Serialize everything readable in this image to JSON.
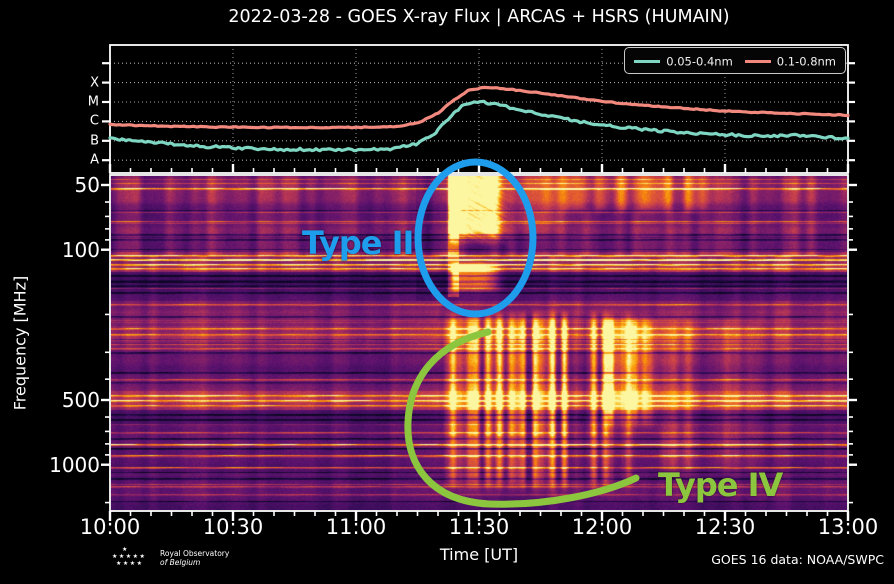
{
  "title": "2022-03-28 - GOES X-ray Flux | ARCAS + HSRS (HUMAIN)",
  "footer": {
    "org_line1": "Royal Observatory",
    "org_line2": "of Belgium",
    "credit": "GOES 16 data: NOAA/SWPC"
  },
  "annotations": {
    "type2_label": "Type II",
    "type2_color": "#1f9ded",
    "type4_label": "Type IV",
    "type4_color": "#8cc63e"
  },
  "chart_data": [
    {
      "type": "line",
      "name": "goes-xray-flux",
      "x_hours_range": [
        10,
        13
      ],
      "y_scale": "log",
      "y_flux_range_wm2": [
        1e-09,
        0.01
      ],
      "grid_flux_levels": [
        0.001,
        0.0001,
        1e-05,
        1e-06,
        1e-07,
        1e-08
      ],
      "class_labels": [
        {
          "label": "X",
          "flux": 0.0001
        },
        {
          "label": "M",
          "flux": 1e-05
        },
        {
          "label": "C",
          "flux": 1e-06
        },
        {
          "label": "B",
          "flux": 1e-07
        },
        {
          "label": "A",
          "flux": 1e-08
        }
      ],
      "legend": [
        {
          "label": "0.05-0.4nm",
          "color": "#7fd6c2"
        },
        {
          "label": "0.1-0.8nm",
          "color": "#f2897f"
        }
      ],
      "series": [
        {
          "name": "0.05-0.4nm",
          "color": "#7fd6c2",
          "points": [
            [
              10.0,
              1.25e-07
            ],
            [
              10.1,
              1e-07
            ],
            [
              10.25,
              7e-08
            ],
            [
              10.4,
              5e-08
            ],
            [
              10.55,
              4.2e-08
            ],
            [
              10.7,
              3.6e-08
            ],
            [
              10.9,
              3.4e-08
            ],
            [
              11.05,
              3.5e-08
            ],
            [
              11.15,
              4e-08
            ],
            [
              11.25,
              7e-08
            ],
            [
              11.32,
              2.5e-07
            ],
            [
              11.38,
              1.5e-06
            ],
            [
              11.43,
              6e-06
            ],
            [
              11.48,
              1.05e-05
            ],
            [
              11.53,
              9.5e-06
            ],
            [
              11.6,
              6e-06
            ],
            [
              11.7,
              3.2e-06
            ],
            [
              11.8,
              1.8e-06
            ],
            [
              11.9,
              1e-06
            ],
            [
              12.0,
              6.5e-07
            ],
            [
              12.15,
              4e-07
            ],
            [
              12.3,
              2.8e-07
            ],
            [
              12.5,
              2.1e-07
            ],
            [
              12.65,
              1.8e-07
            ],
            [
              12.8,
              1.9e-07
            ],
            [
              12.9,
              1.6e-07
            ],
            [
              13.0,
              1.3e-07
            ]
          ]
        },
        {
          "name": "0.1-0.8nm",
          "color": "#f2897f",
          "points": [
            [
              10.0,
              6.8e-07
            ],
            [
              10.2,
              5.8e-07
            ],
            [
              10.4,
              5.2e-07
            ],
            [
              10.6,
              4.9e-07
            ],
            [
              10.8,
              4.8e-07
            ],
            [
              11.0,
              4.9e-07
            ],
            [
              11.15,
              5.3e-07
            ],
            [
              11.25,
              8e-07
            ],
            [
              11.33,
              2.5e-06
            ],
            [
              11.4,
              1.3e-05
            ],
            [
              11.46,
              4.2e-05
            ],
            [
              11.52,
              5.6e-05
            ],
            [
              11.58,
              5.2e-05
            ],
            [
              11.68,
              3.8e-05
            ],
            [
              11.8,
              2.4e-05
            ],
            [
              11.95,
              1.3e-05
            ],
            [
              12.1,
              8e-06
            ],
            [
              12.3,
              5e-06
            ],
            [
              12.5,
              3.4e-06
            ],
            [
              12.7,
              2.7e-06
            ],
            [
              12.85,
              2.4e-06
            ],
            [
              13.0,
              2.1e-06
            ]
          ]
        }
      ]
    },
    {
      "type": "heatmap",
      "name": "radio-spectrogram",
      "xlabel": "Time [UT]",
      "ylabel": "Frequency [MHz]",
      "x_ticks": [
        {
          "t": 10.0,
          "label": "10:00"
        },
        {
          "t": 10.5,
          "label": "10:30"
        },
        {
          "t": 11.0,
          "label": "11:00"
        },
        {
          "t": 11.5,
          "label": "11:30"
        },
        {
          "t": 12.0,
          "label": "12:00"
        },
        {
          "t": 12.5,
          "label": "12:30"
        },
        {
          "t": 13.0,
          "label": "13:00"
        }
      ],
      "x_minor_tick_minutes": 5,
      "y_ticks": [
        {
          "f": 50,
          "label": "50"
        },
        {
          "f": 100,
          "label": "100"
        },
        {
          "f": 500,
          "label": "500"
        },
        {
          "f": 1000,
          "label": "1000"
        }
      ],
      "y_minor_ticks": [
        60,
        70,
        80,
        90,
        200,
        300,
        400,
        600,
        700,
        800,
        900,
        1500
      ],
      "freq_range_mhz": [
        45,
        1700
      ],
      "y_scale": "log",
      "colormap": "inferno-like (dark purple - magenta - orange - yellow)",
      "features": [
        {
          "name": "type-ii-burst",
          "label": "Type II",
          "t_start": 11.37,
          "t_end": 11.63,
          "f_min_mhz": 45,
          "f_max_mhz": 160,
          "relative_intensity": 0.9
        },
        {
          "name": "type-iv-continuum",
          "label": "Type IV",
          "t_start": 11.33,
          "t_end": 12.17,
          "f_min_mhz": 190,
          "f_max_mhz": 1400,
          "relative_intensity": 0.8
        },
        {
          "name": "post-burst-activity",
          "t_start": 12.17,
          "t_end": 12.65,
          "f_min_mhz": 210,
          "f_max_mhz": 1100,
          "relative_intensity": 0.3
        },
        {
          "name": "metric-band-patches",
          "t_start": 11.75,
          "t_end": 12.45,
          "f_min_mhz": 45,
          "f_max_mhz": 75,
          "relative_intensity": 0.4
        },
        {
          "name": "rfi-bands",
          "description": "persistent horizontal interference lines across the full time range"
        }
      ]
    }
  ]
}
